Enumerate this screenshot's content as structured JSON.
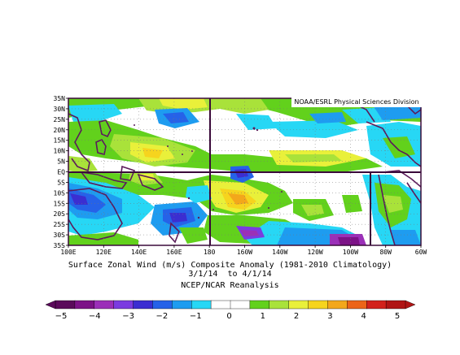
{
  "map": {
    "credit": "NOAA/ESRL Physical Sciences Division",
    "lat_labels": [
      "35N",
      "30N",
      "25N",
      "20N",
      "15N",
      "10N",
      "5N",
      "EQ",
      "5S",
      "10S",
      "15S",
      "20S",
      "25S",
      "30S",
      "35S"
    ],
    "lon_labels": [
      "100E",
      "120E",
      "140E",
      "160E",
      "180",
      "160W",
      "140W",
      "120W",
      "100W",
      "80W",
      "60W"
    ],
    "lat_range": [
      -35,
      35
    ],
    "lon_range_east": [
      100,
      300
    ],
    "grid": true,
    "colors": {
      "neg5": "#5a0a5a",
      "neg4": "#7c1287",
      "neg3": "#9b2fb8",
      "neg2": "#3b2ed1",
      "neg1_5": "#2662e8",
      "neg1": "#1e9cf0",
      "neg0_5": "#27d7f5",
      "pos0_5": "#62d11c",
      "pos1": "#a9e23a",
      "pos1_5": "#e9f03a",
      "pos2": "#f6d41e",
      "pos3": "#f3a71b",
      "pos4": "#ec6418",
      "pos5": "#d2221c",
      "land": "#5b1b5b",
      "frame": "#3a0a3a"
    }
  },
  "caption": {
    "line1": "Surface Zonal Wind (m/s) Composite Anomaly (1981-2010 Climatology)",
    "line2": "3/1/14  to 4/1/14",
    "line3": "NCEP/NCAR Reanalysis"
  },
  "colorbar": {
    "labels": [
      "-5",
      "-4",
      "-3",
      "-2",
      "-1",
      "0",
      "1",
      "2",
      "3",
      "4",
      "5"
    ],
    "segments": [
      "#5a0a5a",
      "#7c1287",
      "#9b2fb8",
      "#7b3be0",
      "#3b2ed1",
      "#2662e8",
      "#1e9cf0",
      "#27d7f5",
      "#ffffff",
      "#ffffff",
      "#62d11c",
      "#a9e23a",
      "#e9f03a",
      "#f6d41e",
      "#f3a71b",
      "#ec6418",
      "#d2221c",
      "#b01515"
    ]
  }
}
